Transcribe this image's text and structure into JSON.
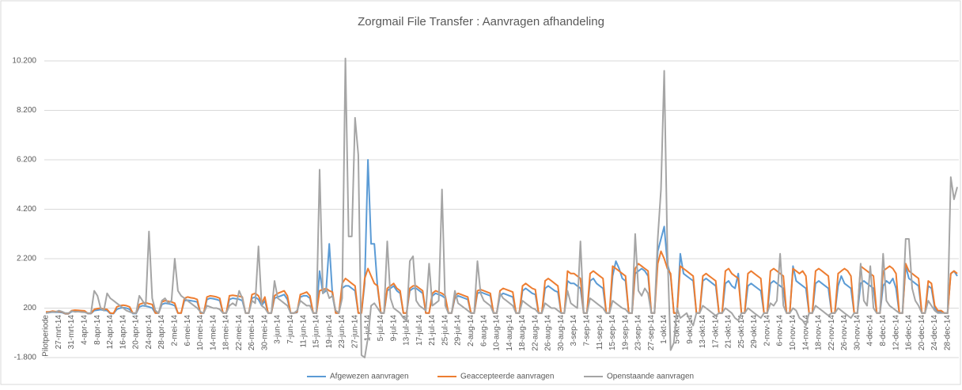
{
  "chart_data": {
    "type": "line",
    "title": "Zorgmail File Transfer : Aanvragen afhandeling",
    "categories": [
      "Pilotperiode",
      null,
      null,
      null,
      "27-mrt-14",
      null,
      null,
      null,
      "31-mrt-14",
      null,
      null,
      null,
      "4-apr-14",
      null,
      null,
      null,
      "8-apr-14",
      null,
      null,
      null,
      "12-apr-14",
      null,
      null,
      null,
      "16-apr-14",
      null,
      null,
      null,
      "20-apr-14",
      null,
      null,
      null,
      "24-apr-14",
      null,
      null,
      null,
      "28-apr-14",
      null,
      null,
      null,
      "2-mei-14",
      null,
      null,
      null,
      "6-mei-14",
      null,
      null,
      null,
      "10-mei-14",
      null,
      null,
      null,
      "14-mei-14",
      null,
      null,
      null,
      "18-mei-14",
      null,
      null,
      null,
      "22-mei-14",
      null,
      null,
      null,
      "26-mei-14",
      null,
      null,
      null,
      "30-mei-14",
      null,
      null,
      null,
      "3-jun-14",
      null,
      null,
      null,
      "7-jun-14",
      null,
      null,
      null,
      "11-jun-14",
      null,
      null,
      null,
      "15-jun-14",
      null,
      null,
      null,
      "19-jun-14",
      null,
      null,
      null,
      "23-jun-14",
      null,
      null,
      null,
      "27-jun-14",
      null,
      null,
      null,
      "1-jul-14",
      null,
      null,
      null,
      "5-jul-14",
      null,
      null,
      null,
      "9-jul-14",
      null,
      null,
      null,
      "13-jul-14",
      null,
      null,
      null,
      "17-jul-14",
      null,
      null,
      null,
      "21-jul-14",
      null,
      null,
      null,
      "25-jul-14",
      null,
      null,
      null,
      "29-jul-14",
      null,
      null,
      null,
      "2-aug-14",
      null,
      null,
      null,
      "6-aug-14",
      null,
      null,
      null,
      "10-aug-14",
      null,
      null,
      null,
      "14-aug-14",
      null,
      null,
      null,
      "18-aug-14",
      null,
      null,
      null,
      "22-aug-14",
      null,
      null,
      null,
      "26-aug-14",
      null,
      null,
      null,
      "30-aug-14",
      null,
      null,
      null,
      "3-sep-14",
      null,
      null,
      null,
      "7-sep-14",
      null,
      null,
      null,
      "11-sep-14",
      null,
      null,
      null,
      "15-sep-14",
      null,
      null,
      null,
      "19-sep-14",
      null,
      null,
      null,
      "23-sep-14",
      null,
      null,
      null,
      "27-sep-14",
      null,
      null,
      null,
      "1-okt-14",
      null,
      null,
      null,
      "5-okt-14",
      null,
      null,
      null,
      "9-okt-14",
      null,
      null,
      null,
      "13-okt-14",
      null,
      null,
      null,
      "17-okt-14",
      null,
      null,
      null,
      "21-okt-14",
      null,
      null,
      null,
      "25-okt-14",
      null,
      null,
      null,
      "29-okt-14",
      null,
      null,
      null,
      "2-nov-14",
      null,
      null,
      null,
      "6-nov-14",
      null,
      null,
      null,
      "10-nov-14",
      null,
      null,
      null,
      "14-nov-14",
      null,
      null,
      null,
      "18-nov-14",
      null,
      null,
      null,
      "22-nov-14",
      null,
      null,
      null,
      "26-nov-14",
      null,
      null,
      null,
      "30-nov-14",
      null,
      null,
      null,
      "4-dec-14",
      null,
      null,
      null,
      "8-dec-14",
      null,
      null,
      null,
      "12-dec-14",
      null,
      null,
      null,
      "16-dec-14",
      null,
      null,
      null,
      "20-dec-14",
      null,
      null,
      null,
      "24-dec-14",
      null,
      null,
      null,
      "28-dec-14",
      null,
      null,
      null
    ],
    "series": [
      {
        "name": "Afgewezen aanvragen",
        "color": "#5b9bd5",
        "values": [
          0,
          20,
          40,
          30,
          40,
          20,
          -30,
          -30,
          60,
          80,
          70,
          60,
          50,
          -20,
          -20,
          100,
          120,
          140,
          110,
          100,
          -20,
          -20,
          150,
          200,
          220,
          200,
          150,
          -20,
          -20,
          250,
          300,
          280,
          250,
          200,
          0,
          0,
          350,
          400,
          380,
          350,
          300,
          0,
          0,
          500,
          520,
          500,
          480,
          450,
          0,
          0,
          550,
          600,
          580,
          550,
          500,
          0,
          0,
          550,
          600,
          580,
          560,
          500,
          0,
          0,
          600,
          650,
          550,
          300,
          500,
          0,
          0,
          600,
          650,
          700,
          750,
          550,
          0,
          0,
          20,
          650,
          700,
          700,
          600,
          0,
          0,
          1700,
          800,
          900,
          2800,
          700,
          0,
          0,
          1000,
          1100,
          1100,
          1000,
          900,
          0,
          0,
          1200,
          6200,
          2800,
          2800,
          1000,
          0,
          0,
          900,
          1000,
          1100,
          900,
          800,
          0,
          0,
          900,
          1000,
          1000,
          900,
          800,
          0,
          0,
          700,
          800,
          750,
          700,
          600,
          0,
          0,
          600,
          700,
          650,
          600,
          550,
          0,
          0,
          800,
          850,
          800,
          750,
          700,
          0,
          0,
          700,
          800,
          750,
          700,
          650,
          0,
          0,
          900,
          1000,
          900,
          800,
          750,
          0,
          0,
          1000,
          1100,
          1000,
          900,
          850,
          0,
          0,
          1300,
          1200,
          1200,
          1100,
          1000,
          0,
          0,
          1300,
          1400,
          1200,
          1100,
          1000,
          0,
          0,
          1500,
          2100,
          1800,
          1400,
          1300,
          0,
          0,
          1600,
          1700,
          1800,
          1700,
          1500,
          0,
          0,
          2500,
          3000,
          3500,
          2000,
          1500,
          0,
          0,
          2400,
          1600,
          1500,
          1400,
          1300,
          0,
          0,
          1300,
          1400,
          1300,
          1200,
          1100,
          0,
          0,
          1200,
          1300,
          1100,
          1000,
          1600,
          0,
          0,
          1100,
          1200,
          1100,
          1000,
          900,
          0,
          0,
          1200,
          1300,
          1200,
          1100,
          1000,
          0,
          0,
          1900,
          1300,
          1200,
          1100,
          1000,
          0,
          0,
          1200,
          1300,
          1200,
          1100,
          1000,
          0,
          0,
          1100,
          1500,
          1200,
          1100,
          1000,
          0,
          0,
          1200,
          1300,
          1200,
          1100,
          1000,
          0,
          0,
          1100,
          1300,
          1200,
          1400,
          1000,
          0,
          0,
          1900,
          1400,
          1300,
          1200,
          1100,
          0,
          0,
          1100,
          1000,
          200,
          50,
          50,
          0,
          0,
          1600,
          1700,
          1500
        ]
      },
      {
        "name": "Geaccepteerde aanvragen",
        "color": "#ed7d31",
        "values": [
          50,
          50,
          80,
          60,
          70,
          50,
          -20,
          -20,
          100,
          120,
          110,
          100,
          90,
          -10,
          -10,
          150,
          180,
          200,
          160,
          150,
          0,
          -10,
          250,
          300,
          320,
          300,
          250,
          0,
          0,
          350,
          400,
          420,
          380,
          350,
          0,
          0,
          450,
          500,
          480,
          450,
          400,
          0,
          0,
          600,
          650,
          620,
          600,
          550,
          0,
          0,
          650,
          700,
          680,
          650,
          600,
          0,
          0,
          700,
          720,
          700,
          680,
          650,
          0,
          0,
          750,
          800,
          700,
          400,
          650,
          0,
          0,
          700,
          800,
          850,
          900,
          700,
          0,
          0,
          50,
          750,
          800,
          850,
          700,
          0,
          0,
          900,
          950,
          1000,
          900,
          850,
          0,
          0,
          1200,
          1400,
          1300,
          1200,
          1100,
          0,
          0,
          1400,
          1800,
          1500,
          1200,
          1100,
          0,
          0,
          1000,
          1100,
          1200,
          1000,
          900,
          0,
          0,
          1000,
          1100,
          1100,
          1000,
          900,
          0,
          0,
          800,
          900,
          850,
          800,
          700,
          0,
          0,
          700,
          800,
          750,
          700,
          650,
          0,
          0,
          900,
          950,
          900,
          850,
          800,
          0,
          0,
          900,
          1000,
          950,
          900,
          850,
          0,
          0,
          1100,
          1200,
          1100,
          1000,
          950,
          0,
          0,
          1300,
          1400,
          1300,
          1200,
          1100,
          0,
          0,
          1700,
          1600,
          1600,
          1500,
          1400,
          0,
          0,
          1600,
          1700,
          1600,
          1500,
          1400,
          0,
          0,
          1900,
          1800,
          1700,
          1600,
          1500,
          0,
          0,
          1800,
          2000,
          1900,
          1800,
          1700,
          0,
          0,
          2000,
          2500,
          2200,
          1800,
          1600,
          0,
          0,
          1900,
          1800,
          1700,
          1600,
          1500,
          0,
          0,
          1500,
          1600,
          1500,
          1400,
          1300,
          0,
          0,
          1700,
          1800,
          1600,
          1500,
          1400,
          0,
          0,
          1600,
          1700,
          1600,
          1500,
          1400,
          0,
          0,
          1700,
          1800,
          1700,
          1600,
          1500,
          0,
          0,
          1800,
          1700,
          1600,
          1700,
          1500,
          0,
          0,
          1700,
          1800,
          1700,
          1600,
          1500,
          0,
          0,
          1600,
          1700,
          1800,
          1700,
          1500,
          0,
          0,
          1900,
          1800,
          1700,
          1600,
          1500,
          0,
          0,
          1700,
          1800,
          1900,
          1800,
          1600,
          0,
          0,
          2000,
          1700,
          1600,
          1500,
          1400,
          0,
          0,
          1300,
          1200,
          300,
          100,
          100,
          0,
          0,
          1600,
          1700,
          1600
        ]
      },
      {
        "name": "Openstaande aanvragen",
        "color": "#a5a5a5",
        "values": [
          0,
          30,
          50,
          40,
          100,
          60,
          0,
          0,
          80,
          50,
          60,
          40,
          30,
          0,
          0,
          900,
          700,
          200,
          100,
          800,
          600,
          500,
          400,
          300,
          200,
          100,
          50,
          0,
          0,
          700,
          500,
          300,
          3300,
          600,
          100,
          0,
          500,
          600,
          400,
          500,
          2200,
          900,
          700,
          600,
          500,
          400,
          300,
          200,
          50,
          0,
          300,
          250,
          200,
          200,
          150,
          0,
          0,
          300,
          400,
          300,
          900,
          600,
          0,
          0,
          500,
          400,
          2700,
          300,
          200,
          0,
          0,
          1300,
          600,
          500,
          400,
          300,
          0,
          0,
          100,
          500,
          400,
          300,
          300,
          0,
          0,
          5800,
          800,
          1000,
          600,
          700,
          100,
          0,
          600,
          10300,
          3100,
          3100,
          7900,
          6400,
          -1700,
          -1800,
          -1000,
          300,
          400,
          200,
          0,
          0,
          2900,
          600,
          200,
          100,
          0,
          -200,
          -300,
          2100,
          2300,
          500,
          300,
          200,
          100,
          2000,
          300,
          400,
          500,
          5000,
          300,
          0,
          0,
          900,
          400,
          300,
          200,
          100,
          0,
          0,
          2100,
          800,
          500,
          400,
          300,
          0,
          0,
          800,
          600,
          500,
          400,
          300,
          0,
          0,
          500,
          400,
          300,
          200,
          150,
          0,
          0,
          400,
          300,
          200,
          200,
          100,
          0,
          0,
          900,
          400,
          300,
          200,
          2900,
          0,
          0,
          600,
          500,
          400,
          300,
          200,
          0,
          0,
          500,
          400,
          300,
          200,
          150,
          0,
          0,
          3200,
          900,
          700,
          1000,
          800,
          0,
          0,
          3000,
          5000,
          9800,
          2500,
          -1500,
          -1200,
          200,
          -200,
          -100,
          0,
          -300,
          -500,
          0,
          0,
          300,
          200,
          100,
          0,
          -100,
          0,
          0,
          200,
          100,
          0,
          -200,
          -300,
          0,
          0,
          200,
          100,
          0,
          -100,
          -200,
          0,
          0,
          400,
          300,
          500,
          2400,
          300,
          0,
          0,
          200,
          100,
          -200,
          -300,
          -500,
          0,
          0,
          300,
          200,
          100,
          0,
          -100,
          0,
          0,
          200,
          100,
          0,
          -100,
          -200,
          0,
          0,
          2000,
          500,
          300,
          1900,
          200,
          0,
          0,
          2400,
          500,
          300,
          200,
          100,
          0,
          0,
          3000,
          3000,
          1000,
          500,
          300,
          0,
          0,
          500,
          300,
          100,
          0,
          0,
          0,
          0,
          5500,
          4600,
          5100
        ]
      }
    ],
    "ylim": [
      -1800,
      11000
    ],
    "yticks": [
      {
        "value": -1800,
        "label": "-1.800"
      },
      200,
      {
        "value": 2200,
        "label": "2.200"
      },
      {
        "value": 4200,
        "label": "4.200"
      },
      {
        "value": 6200,
        "label": "6.200"
      },
      {
        "value": 8200,
        "label": "8.200"
      },
      {
        "value": 10200,
        "label": "10.200"
      }
    ],
    "grid": true,
    "legend": "bottom"
  }
}
